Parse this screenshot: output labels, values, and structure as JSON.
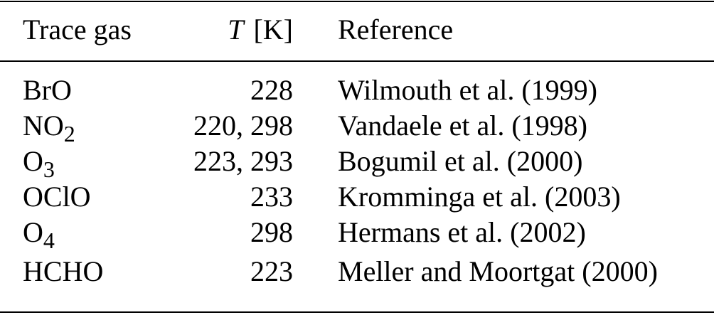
{
  "table": {
    "header": [
      "Trace gas",
      {
        "symbol": "T",
        "unit": "[K]"
      },
      "Reference"
    ],
    "rows": [
      [
        "BrO",
        "228",
        "Wilmouth et al. (1999)"
      ],
      [
        {
          "text": "NO",
          "sub": "2"
        },
        "220, 298",
        "Vandaele et al. (1998)"
      ],
      [
        {
          "text": "O",
          "sub": "3"
        },
        "223, 293",
        "Bogumil et al. (2000)"
      ],
      [
        "OClO",
        "233",
        "Kromminga et al. (2003)"
      ],
      [
        {
          "text": "O",
          "sub": "4"
        },
        "298",
        "Hermans et al. (2002)"
      ],
      [
        "HCHO",
        "223",
        "Meller and Moortgat (2000)"
      ]
    ]
  }
}
